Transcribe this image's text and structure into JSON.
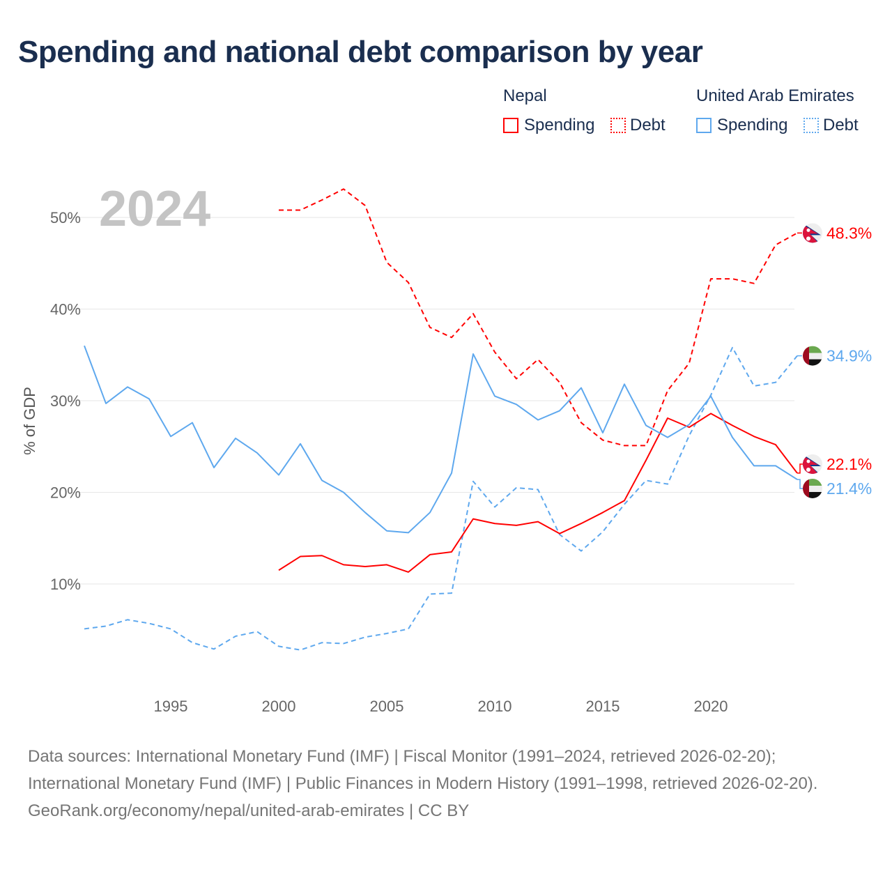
{
  "title": "Spending and national debt comparison by year",
  "legend": {
    "groups": [
      {
        "name": "Nepal",
        "spending_label": "Spending",
        "debt_label": "Debt",
        "color": "#ff0000"
      },
      {
        "name": "United Arab Emirates",
        "spending_label": "Spending",
        "debt_label": "Debt",
        "color": "#5ea8ee"
      }
    ]
  },
  "chart_data": {
    "type": "line",
    "title": "Spending and national debt comparison by year",
    "year_watermark": "2024",
    "ylabel": "% of GDP",
    "xlabel": "",
    "xlim": [
      1991,
      2024
    ],
    "ylim": [
      0,
      55
    ],
    "x_ticks": [
      1995,
      2000,
      2005,
      2010,
      2015,
      2020
    ],
    "y_ticks": [
      {
        "value": 10,
        "label": "10%"
      },
      {
        "value": 20,
        "label": "20%"
      },
      {
        "value": 30,
        "label": "30%"
      },
      {
        "value": 40,
        "label": "40%"
      },
      {
        "value": 50,
        "label": "50%"
      }
    ],
    "grid": true,
    "legend_position": "top-right",
    "series": [
      {
        "name": "Nepal Debt",
        "country": "nepal",
        "style": "dashed",
        "color": "#ff0000",
        "start": 2000,
        "end_label": "48.3%",
        "values": [
          50.8,
          50.8,
          51.9,
          53.1,
          51.3,
          45.1,
          42.9,
          38.0,
          36.9,
          39.5,
          35.3,
          32.4,
          34.5,
          32.0,
          27.6,
          25.7,
          25.1,
          25.1,
          31.1,
          34.1,
          43.3,
          43.3,
          42.8,
          47.0,
          48.3
        ]
      },
      {
        "name": "United Arab Emirates Debt",
        "country": "uae",
        "style": "dashed",
        "color": "#5ea8ee",
        "start": 1991,
        "end_label": "34.9%",
        "values": [
          5.1,
          5.4,
          6.1,
          5.7,
          5.1,
          3.6,
          2.9,
          4.3,
          4.8,
          3.2,
          2.8,
          3.6,
          3.5,
          4.2,
          4.6,
          5.1,
          8.9,
          9.0,
          21.2,
          18.4,
          20.5,
          20.3,
          15.4,
          13.6,
          15.7,
          18.7,
          21.3,
          20.9,
          26.2,
          30.6,
          35.8,
          31.6,
          32.0,
          34.9
        ]
      },
      {
        "name": "Nepal Spending",
        "country": "nepal",
        "style": "solid",
        "color": "#ff0000",
        "start": 2000,
        "end_label": "22.1%",
        "values": [
          11.5,
          13.0,
          13.1,
          12.1,
          11.9,
          12.1,
          11.3,
          13.2,
          13.5,
          17.1,
          16.6,
          16.4,
          16.8,
          15.5,
          16.6,
          17.8,
          19.1,
          23.5,
          28.1,
          27.1,
          28.6,
          27.3,
          26.1,
          25.2,
          22.1
        ]
      },
      {
        "name": "United Arab Emirates Spending",
        "country": "uae",
        "style": "solid",
        "color": "#5ea8ee",
        "start": 1991,
        "end_label": "21.4%",
        "values": [
          36.0,
          29.7,
          31.5,
          30.2,
          26.1,
          27.6,
          22.7,
          25.9,
          24.3,
          21.9,
          25.3,
          21.3,
          20.0,
          17.8,
          15.8,
          15.6,
          17.8,
          22.1,
          35.1,
          30.5,
          29.6,
          27.9,
          28.9,
          31.4,
          26.5,
          31.8,
          27.3,
          26.0,
          27.4,
          30.5,
          26.0,
          22.9,
          22.9,
          21.4
        ]
      }
    ]
  },
  "footer": {
    "sources": "Data sources: International Monetary Fund (IMF) | Fiscal Monitor (1991–2024, retrieved 2026-02-20); International Monetary Fund (IMF) | Public Finances in Modern History (1991–1998, retrieved 2026-02-20).",
    "credit": "GeoRank.org/economy/nepal/united-arab-emirates | CC BY"
  }
}
